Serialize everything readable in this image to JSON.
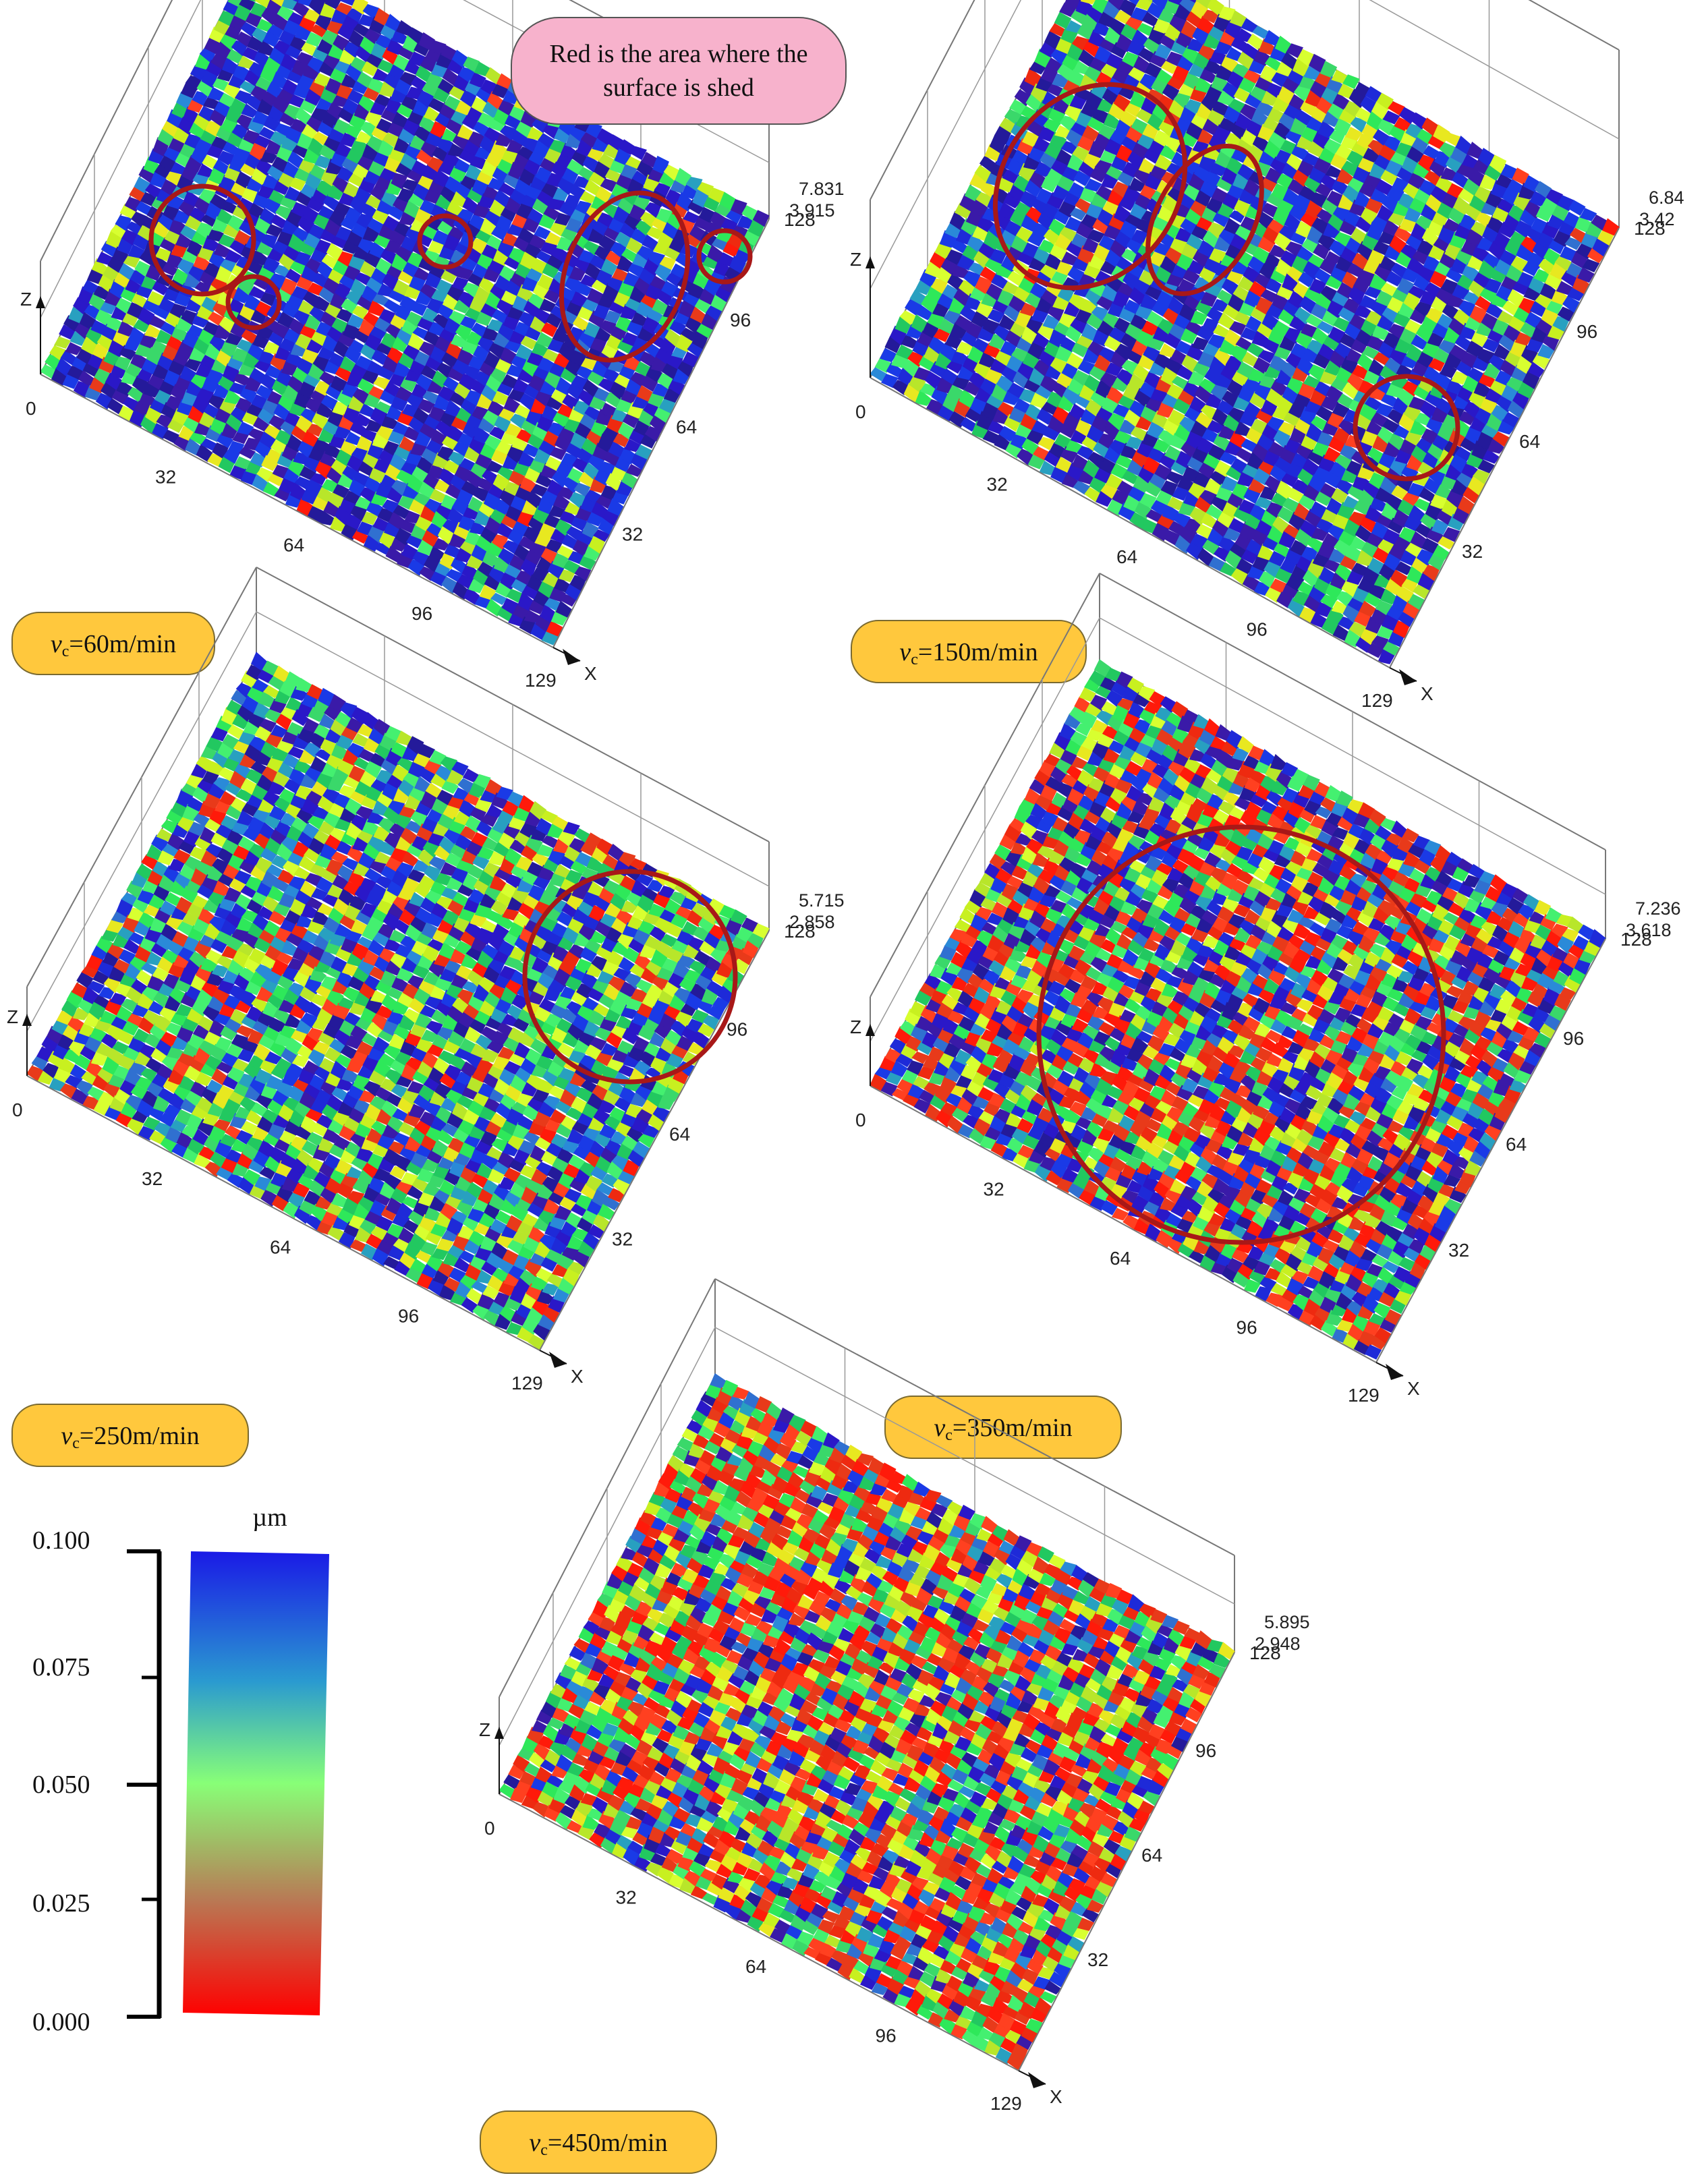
{
  "annotation": {
    "line1": "Red is the area where the",
    "line2": "surface is shed",
    "fill": "#f7b2cc",
    "circle_color": "#a81818"
  },
  "legend": {
    "unit": "µm",
    "ticks": [
      "0.100",
      "0.075",
      "0.050",
      "0.025",
      "0.000"
    ],
    "gradient": [
      "#1a1ae6",
      "#2a9ad0",
      "#88ff77",
      "#b87a55",
      "#ff0000"
    ]
  },
  "chart_data": [
    {
      "type": "heatmap",
      "speed_prefix": "v",
      "speed_sub": "c",
      "speed_value": "=60m/min",
      "z_top": "7.831",
      "z_mid": "3.915",
      "x_ticks": [
        "32",
        "64",
        "96"
      ],
      "x_end": "129",
      "y_ticks": [
        "32",
        "64",
        "96",
        "128"
      ],
      "origin": "0",
      "x_axis": "X",
      "z_axis": "Z",
      "red_fraction": 0.04,
      "blue_fraction": 0.62
    },
    {
      "type": "heatmap",
      "speed_prefix": "v",
      "speed_sub": "c",
      "speed_value": "=150m/min",
      "z_top": "6.84",
      "z_mid": "3.42",
      "x_ticks": [
        "32",
        "64",
        "96"
      ],
      "x_end": "129",
      "y_ticks": [
        "32",
        "64",
        "96",
        "128"
      ],
      "origin": "0",
      "x_axis": "X",
      "z_axis": "Z",
      "red_fraction": 0.07,
      "blue_fraction": 0.5
    },
    {
      "type": "heatmap",
      "speed_prefix": "v",
      "speed_sub": "c",
      "speed_value": "=250m/min",
      "z_top": "5.715",
      "z_mid": "2.858",
      "x_ticks": [
        "32",
        "64",
        "96"
      ],
      "x_end": "129",
      "y_ticks": [
        "32",
        "64",
        "96",
        "128"
      ],
      "origin": "0",
      "x_axis": "X",
      "z_axis": "Z",
      "red_fraction": 0.12,
      "blue_fraction": 0.32
    },
    {
      "type": "heatmap",
      "speed_prefix": "v",
      "speed_sub": "c",
      "speed_value": "=350m/min",
      "z_top": "7.236",
      "z_mid": "3.618",
      "x_ticks": [
        "32",
        "64",
        "96"
      ],
      "x_end": "129",
      "y_ticks": [
        "32",
        "64",
        "96",
        "128"
      ],
      "origin": "0",
      "x_axis": "X",
      "z_axis": "Z",
      "red_fraction": 0.3,
      "blue_fraction": 0.3
    },
    {
      "type": "heatmap",
      "speed_prefix": "v",
      "speed_sub": "c",
      "speed_value": "=450m/min",
      "z_top": "5.895",
      "z_mid": "2.948",
      "x_ticks": [
        "32",
        "64",
        "96"
      ],
      "x_end": "129",
      "y_ticks": [
        "32",
        "64",
        "96",
        "128"
      ],
      "origin": "0",
      "x_axis": "X",
      "z_axis": "Z",
      "red_fraction": 0.38,
      "blue_fraction": 0.16
    }
  ]
}
